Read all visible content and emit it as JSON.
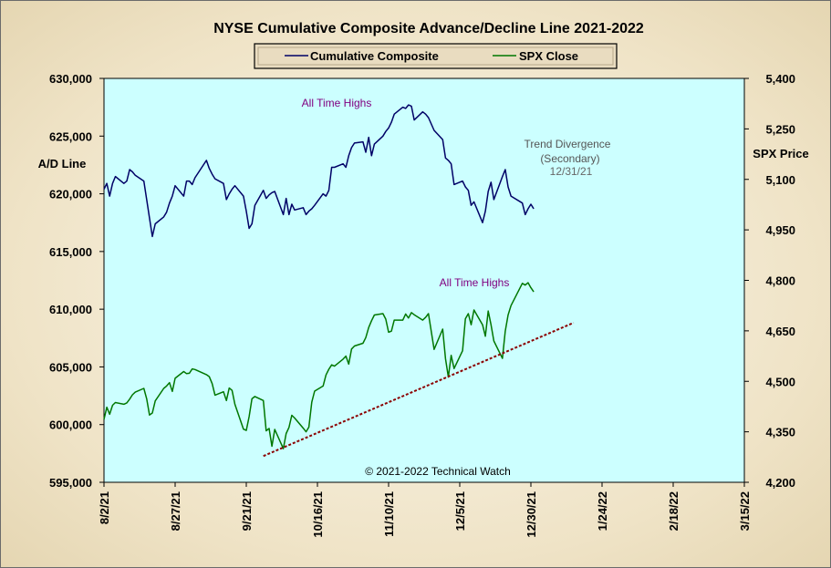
{
  "chart_data": {
    "type": "line",
    "title": "NYSE Cumulative  Composite Advance/Decline Line 2021-2022",
    "ylabel_left": "A/D Line",
    "ylabel_right": "SPX Price",
    "copyright": "© 2021-2022  Technical Watch",
    "ylim_left": [
      595000,
      630000
    ],
    "ylim_right": [
      4200,
      5400
    ],
    "xlim": [
      "2021-08-02",
      "2022-03-15"
    ],
    "legend_position": "top-center",
    "grid": false,
    "left_ticks": [
      "630,000",
      "625,000",
      "620,000",
      "615,000",
      "610,000",
      "605,000",
      "600,000",
      "595,000"
    ],
    "right_ticks": [
      "5,400",
      "5,250",
      "5,100",
      "4,950",
      "4,800",
      "4,650",
      "4,500",
      "4,350",
      "4,200"
    ],
    "x_ticks": [
      "8/2/21",
      "8/27/21",
      "9/21/21",
      "10/16/21",
      "11/10/21",
      "12/5/21",
      "12/30/21",
      "1/24/22",
      "2/18/22",
      "3/15/22"
    ],
    "colors": {
      "plot_bg": "#ccffff",
      "composite": "#000066",
      "spx": "#007700",
      "trend": "#8b0000"
    },
    "series": [
      {
        "name": "Cumulative Composite",
        "axis": "left",
        "x": [
          "2021-08-02",
          "2021-08-03",
          "2021-08-04",
          "2021-08-05",
          "2021-08-06",
          "2021-08-09",
          "2021-08-10",
          "2021-08-11",
          "2021-08-12",
          "2021-08-13",
          "2021-08-16",
          "2021-08-17",
          "2021-08-18",
          "2021-08-19",
          "2021-08-20",
          "2021-08-23",
          "2021-08-24",
          "2021-08-25",
          "2021-08-26",
          "2021-08-27",
          "2021-08-30",
          "2021-08-31",
          "2021-09-01",
          "2021-09-02",
          "2021-09-03",
          "2021-09-07",
          "2021-09-08",
          "2021-09-09",
          "2021-09-10",
          "2021-09-13",
          "2021-09-14",
          "2021-09-15",
          "2021-09-16",
          "2021-09-17",
          "2021-09-20",
          "2021-09-21",
          "2021-09-22",
          "2021-09-23",
          "2021-09-24",
          "2021-09-27",
          "2021-09-28",
          "2021-09-29",
          "2021-09-30",
          "2021-10-01",
          "2021-10-04",
          "2021-10-05",
          "2021-10-06",
          "2021-10-07",
          "2021-10-08",
          "2021-10-11",
          "2021-10-12",
          "2021-10-13",
          "2021-10-14",
          "2021-10-15",
          "2021-10-18",
          "2021-10-19",
          "2021-10-20",
          "2021-10-21",
          "2021-10-22",
          "2021-10-25",
          "2021-10-26",
          "2021-10-27",
          "2021-10-28",
          "2021-10-29",
          "2021-11-01",
          "2021-11-02",
          "2021-11-03",
          "2021-11-04",
          "2021-11-05",
          "2021-11-08",
          "2021-11-09",
          "2021-11-10",
          "2021-11-11",
          "2021-11-12",
          "2021-11-15",
          "2021-11-16",
          "2021-11-17",
          "2021-11-18",
          "2021-11-19",
          "2021-11-22",
          "2021-11-23",
          "2021-11-24",
          "2021-11-26",
          "2021-11-29",
          "2021-11-30",
          "2021-12-01",
          "2021-12-02",
          "2021-12-03",
          "2021-12-06",
          "2021-12-07",
          "2021-12-08",
          "2021-12-09",
          "2021-12-10",
          "2021-12-13",
          "2021-12-14",
          "2021-12-15",
          "2021-12-16",
          "2021-12-17",
          "2021-12-20",
          "2021-12-21",
          "2021-12-22",
          "2021-12-23",
          "2021-12-27",
          "2021-12-28",
          "2021-12-29",
          "2021-12-30",
          "2021-12-31"
        ],
        "values": [
          620400,
          620900,
          619800,
          620900,
          621500,
          620900,
          621100,
          622100,
          621900,
          621600,
          621100,
          619500,
          617900,
          616300,
          617400,
          618000,
          618400,
          619200,
          619800,
          620700,
          619800,
          621100,
          621100,
          620800,
          621400,
          622900,
          622200,
          621700,
          621300,
          620900,
          619500,
          620000,
          620400,
          620700,
          619800,
          618500,
          617000,
          617400,
          619000,
          620300,
          619600,
          619900,
          620100,
          620200,
          618200,
          619600,
          618200,
          619100,
          618600,
          618800,
          618200,
          618500,
          618700,
          619000,
          620000,
          619800,
          620300,
          622300,
          622300,
          622600,
          622300,
          623300,
          624000,
          624400,
          624500,
          623600,
          624900,
          623300,
          624300,
          625000,
          625400,
          625700,
          626200,
          626900,
          627500,
          627400,
          627700,
          627600,
          626400,
          627100,
          626900,
          626600,
          625500,
          624700,
          623100,
          622900,
          622600,
          620800,
          621100,
          620600,
          620300,
          619000,
          619300,
          617500,
          618500,
          620200,
          621000,
          619500,
          621500,
          622100,
          620600,
          619800,
          619200,
          618200,
          618700,
          619100,
          618700
        ]
      },
      {
        "name": "SPX Close",
        "axis": "right",
        "x": [
          "2021-08-02",
          "2021-08-03",
          "2021-08-04",
          "2021-08-05",
          "2021-08-06",
          "2021-08-09",
          "2021-08-10",
          "2021-08-11",
          "2021-08-12",
          "2021-08-13",
          "2021-08-16",
          "2021-08-17",
          "2021-08-18",
          "2021-08-19",
          "2021-08-20",
          "2021-08-23",
          "2021-08-24",
          "2021-08-25",
          "2021-08-26",
          "2021-08-27",
          "2021-08-30",
          "2021-08-31",
          "2021-09-01",
          "2021-09-02",
          "2021-09-03",
          "2021-09-07",
          "2021-09-08",
          "2021-09-09",
          "2021-09-10",
          "2021-09-13",
          "2021-09-14",
          "2021-09-15",
          "2021-09-16",
          "2021-09-17",
          "2021-09-20",
          "2021-09-21",
          "2021-09-22",
          "2021-09-23",
          "2021-09-24",
          "2021-09-27",
          "2021-09-28",
          "2021-09-29",
          "2021-09-30",
          "2021-10-01",
          "2021-10-04",
          "2021-10-05",
          "2021-10-06",
          "2021-10-07",
          "2021-10-08",
          "2021-10-11",
          "2021-10-12",
          "2021-10-13",
          "2021-10-14",
          "2021-10-15",
          "2021-10-18",
          "2021-10-19",
          "2021-10-20",
          "2021-10-21",
          "2021-10-22",
          "2021-10-25",
          "2021-10-26",
          "2021-10-27",
          "2021-10-28",
          "2021-10-29",
          "2021-11-01",
          "2021-11-02",
          "2021-11-03",
          "2021-11-04",
          "2021-11-05",
          "2021-11-08",
          "2021-11-09",
          "2021-11-10",
          "2021-11-11",
          "2021-11-12",
          "2021-11-15",
          "2021-11-16",
          "2021-11-17",
          "2021-11-18",
          "2021-11-19",
          "2021-11-22",
          "2021-11-23",
          "2021-11-24",
          "2021-11-26",
          "2021-11-29",
          "2021-11-30",
          "2021-12-01",
          "2021-12-02",
          "2021-12-03",
          "2021-12-06",
          "2021-12-07",
          "2021-12-08",
          "2021-12-09",
          "2021-12-10",
          "2021-12-13",
          "2021-12-14",
          "2021-12-15",
          "2021-12-16",
          "2021-12-17",
          "2021-12-20",
          "2021-12-21",
          "2021-12-22",
          "2021-12-23",
          "2021-12-27",
          "2021-12-28",
          "2021-12-29",
          "2021-12-30",
          "2021-12-31"
        ],
        "values": [
          4387,
          4423,
          4402,
          4429,
          4437,
          4432,
          4436,
          4447,
          4460,
          4468,
          4479,
          4448,
          4400,
          4406,
          4442,
          4479,
          4486,
          4496,
          4470,
          4509,
          4529,
          4523,
          4524,
          4537,
          4535,
          4520,
          4514,
          4493,
          4459,
          4469,
          4443,
          4480,
          4473,
          4432,
          4358,
          4354,
          4395,
          4448,
          4455,
          4443,
          4353,
          4360,
          4307,
          4357,
          4300,
          4345,
          4363,
          4399,
          4391,
          4361,
          4350,
          4364,
          4438,
          4471,
          4486,
          4519,
          4536,
          4549,
          4545,
          4566,
          4575,
          4551,
          4596,
          4605,
          4613,
          4630,
          4660,
          4680,
          4697,
          4701,
          4685,
          4646,
          4649,
          4682,
          4682,
          4700,
          4688,
          4704,
          4698,
          4682,
          4690,
          4701,
          4595,
          4655,
          4567,
          4513,
          4577,
          4538,
          4591,
          4686,
          4701,
          4668,
          4712,
          4668,
          4634,
          4709,
          4668,
          4620,
          4568,
          4649,
          4697,
          4725,
          4791,
          4786,
          4793,
          4778,
          4766
        ]
      }
    ],
    "trend_line": {
      "axis": "right",
      "x": [
        "2021-09-27",
        "2022-01-14"
      ],
      "y": [
        4278,
        4674
      ]
    }
  },
  "legend": {
    "items": [
      {
        "label": "Cumulative Composite",
        "color": "#000066"
      },
      {
        "label": "SPX Close",
        "color": "#007700"
      }
    ]
  },
  "annotations": {
    "ath_composite": "All Time Highs",
    "ath_spx": "All Time Highs",
    "trend_divergence": "Trend  Divergence",
    "secondary": "(Secondary)",
    "date": "12/31/21"
  }
}
